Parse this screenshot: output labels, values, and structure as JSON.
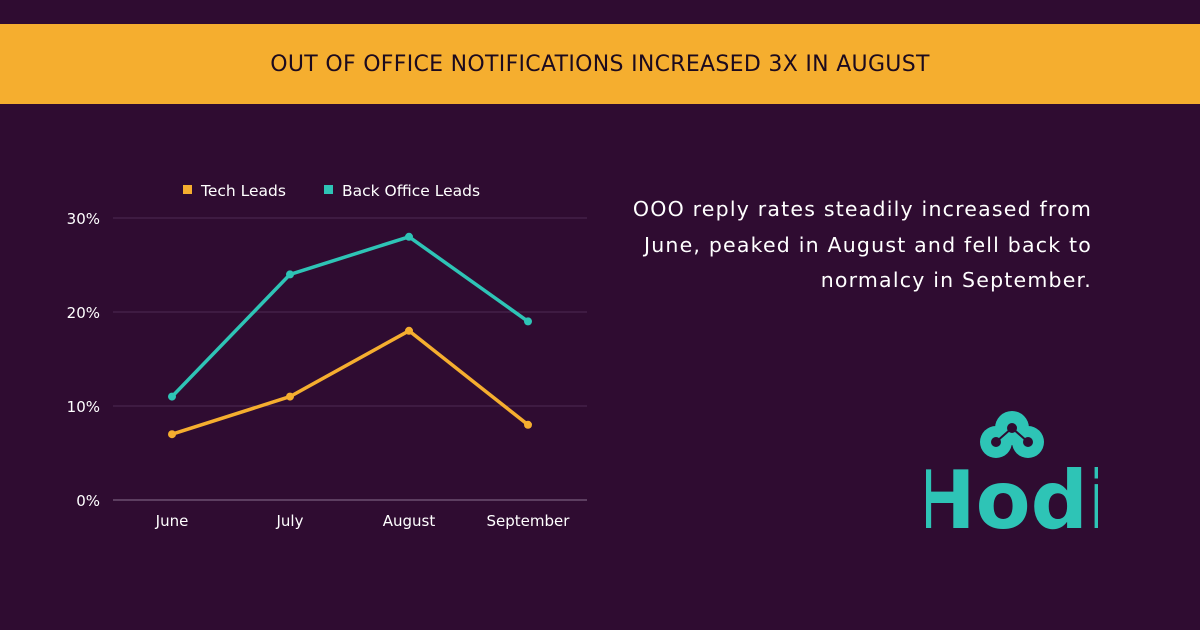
{
  "banner": {
    "title": "OUT OF OFFICE NOTIFICATIONS INCREASED 3X IN AUGUST"
  },
  "summary": {
    "text": "OOO reply rates steadily increased from June, peaked in August and fell back to normalcy in September."
  },
  "logo": {
    "text": "Hodi",
    "color": "#2ec4b6"
  },
  "chart_data": {
    "type": "line",
    "title": "",
    "xlabel": "",
    "ylabel": "",
    "categories": [
      "June",
      "July",
      "August",
      "September"
    ],
    "ylim": [
      0,
      30
    ],
    "yticks": [
      0,
      10,
      20,
      30
    ],
    "ytick_labels": [
      "0%",
      "10%",
      "20%",
      "30%"
    ],
    "grid": true,
    "legend_position": "top",
    "series": [
      {
        "name": "Tech Leads",
        "color": "#f5ae2f",
        "values": [
          7,
          11,
          18,
          8
        ]
      },
      {
        "name": "Back Office Leads",
        "color": "#2ec4b6",
        "values": [
          11,
          24,
          28,
          19
        ]
      }
    ]
  }
}
